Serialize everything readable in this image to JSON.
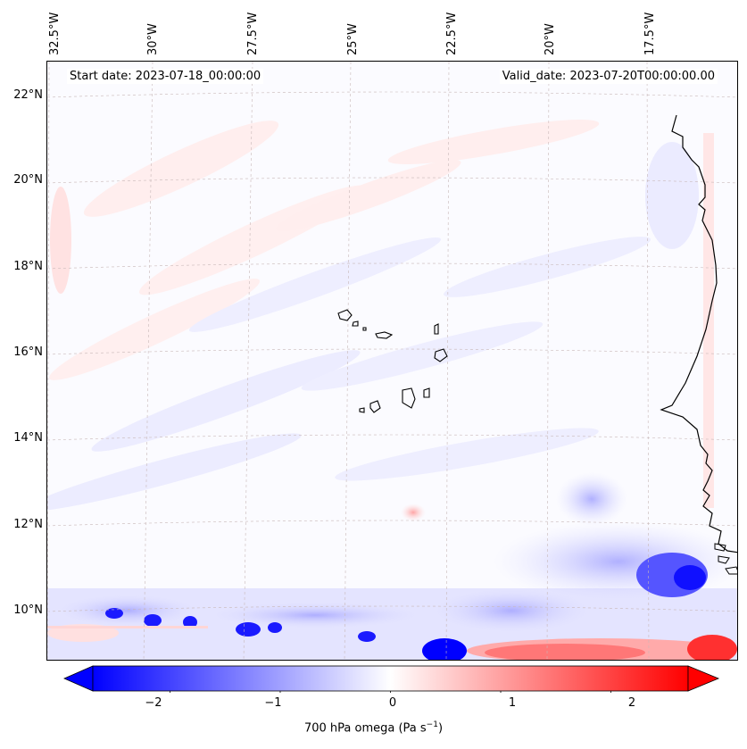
{
  "map": {
    "start_date": "Start date: 2023-07-18_00:00:00",
    "valid_date": "Valid_date: 2023-07-20T00:00:00.00",
    "lon_labels": [
      "32.5°W",
      "30°W",
      "27.5°W",
      "25°W",
      "22.5°W",
      "20°W",
      "17.5°W"
    ],
    "lat_labels": [
      "22°N",
      "20°N",
      "18°N",
      "16°N",
      "14°N",
      "12°N",
      "10°N"
    ]
  },
  "colorbar": {
    "label_prefix": "700 hPa omega (Pa s",
    "label_exp": "−1",
    "label_suffix": ")",
    "ticks": [
      "−2",
      "−1",
      "0",
      "1",
      "2"
    ],
    "vmin": -2.7,
    "vmax": 2.7,
    "neg_color": "#0000ff",
    "pos_color": "#ff0000"
  }
}
